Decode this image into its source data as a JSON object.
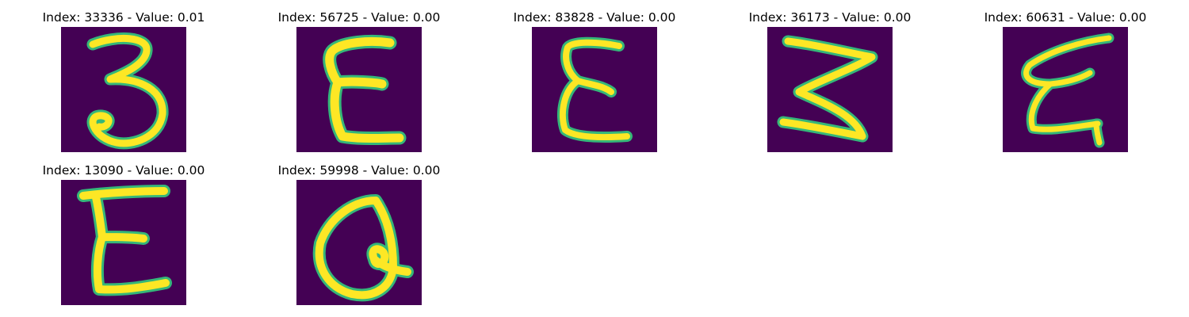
{
  "panels": [
    {
      "title": "Index: 33336 - Value: 0.01",
      "glyph": "digit-3"
    },
    {
      "title": "Index: 56725 - Value: 0.00",
      "glyph": "letter-E"
    },
    {
      "title": "Index: 83828 - Value: 0.00",
      "glyph": "letter-E"
    },
    {
      "title": "Index: 36173 - Value: 0.00",
      "glyph": "letter-Z"
    },
    {
      "title": "Index: 60631 - Value: 0.00",
      "glyph": "letter-E"
    },
    {
      "title": "Index: 13090 - Value: 0.00",
      "glyph": "letter-E"
    },
    {
      "title": "Index: 59998 - Value: 0.00",
      "glyph": "letter-Q"
    }
  ],
  "colors": {
    "background": "#440154",
    "stroke": "#fde725",
    "halo": "#35b779"
  }
}
